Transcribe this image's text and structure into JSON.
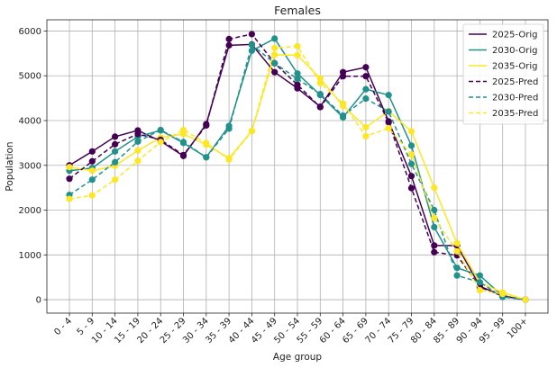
{
  "chart_data": {
    "type": "line",
    "title": "Females",
    "xlabel": "Age group",
    "ylabel": "Population",
    "ylim": [
      -300,
      6250
    ],
    "yticks": [
      0,
      1000,
      2000,
      3000,
      4000,
      5000,
      6000
    ],
    "grid": true,
    "legend_position": "top-right",
    "categories": [
      "0 - 4",
      "5 - 9",
      "10 - 14",
      "15 - 19",
      "20 - 24",
      "25 - 29",
      "30 - 34",
      "35 - 39",
      "40 - 44",
      "45 - 49",
      "50 - 54",
      "55 - 59",
      "60 - 64",
      "65 - 69",
      "70 - 74",
      "75 - 79",
      "80 - 84",
      "85 - 89",
      "90 - 94",
      "95 - 99",
      "100+"
    ],
    "series": [
      {
        "name": "2025-Orig",
        "color": "#440154",
        "style": "solid",
        "values": [
          3000,
          3310,
          3640,
          3780,
          3540,
          3210,
          3920,
          5680,
          5700,
          5080,
          4720,
          4310,
          5080,
          5190,
          3980,
          2760,
          1210,
          1210,
          300,
          90,
          0
        ]
      },
      {
        "name": "2030-Orig",
        "color": "#21918c",
        "style": "solid",
        "values": [
          2880,
          2940,
          3310,
          3640,
          3780,
          3500,
          3180,
          3880,
          5560,
          5830,
          5050,
          4570,
          4070,
          4700,
          4570,
          3440,
          1620,
          710,
          540,
          80,
          0
        ]
      },
      {
        "name": "2035-Orig",
        "color": "#fde725",
        "style": "solid",
        "values": [
          2960,
          2880,
          2990,
          3330,
          3620,
          3700,
          3460,
          3160,
          3770,
          5470,
          5460,
          4940,
          4330,
          3850,
          4210,
          3760,
          2500,
          1260,
          380,
          160,
          0
        ]
      },
      {
        "name": "2025-Pred",
        "color": "#440154",
        "style": "dashed",
        "values": [
          2700,
          3090,
          3470,
          3700,
          3570,
          3230,
          3890,
          5820,
          5930,
          5280,
          4800,
          4300,
          4990,
          4990,
          3960,
          2490,
          1060,
          990,
          280,
          80,
          0
        ]
      },
      {
        "name": "2030-Pred",
        "color": "#21918c",
        "style": "dashed",
        "values": [
          2340,
          2680,
          3070,
          3530,
          3790,
          3520,
          3180,
          3820,
          5690,
          5280,
          4930,
          4590,
          4110,
          4490,
          4200,
          3030,
          2000,
          540,
          390,
          60,
          0
        ]
      },
      {
        "name": "2035-Pred",
        "color": "#fde725",
        "style": "dashed",
        "values": [
          2250,
          2330,
          2680,
          3100,
          3520,
          3790,
          3500,
          3130,
          3760,
          5620,
          5660,
          4840,
          4380,
          3650,
          3830,
          3240,
          1820,
          1080,
          210,
          130,
          0
        ]
      }
    ]
  }
}
